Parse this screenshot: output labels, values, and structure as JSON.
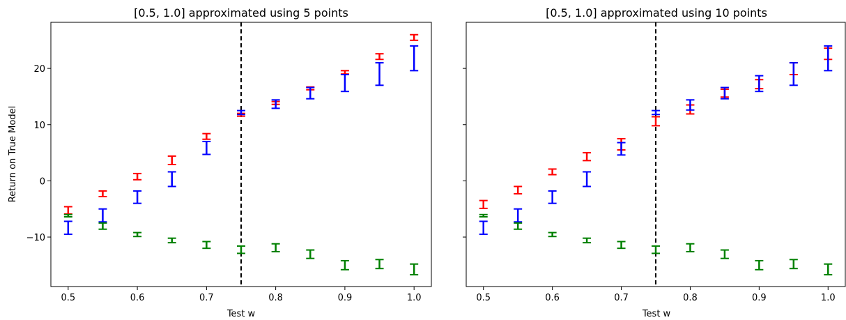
{
  "chart_data": [
    {
      "type": "scatter",
      "title": "[0.5, 1.0] approximated using 5 points",
      "xlabel": "Test w",
      "ylabel": "Return on True Model",
      "xlim": [
        0.475,
        1.025
      ],
      "ylim": [
        -18.8,
        28.2
      ],
      "xticks": [
        0.5,
        0.6,
        0.7,
        0.8,
        0.9,
        1.0
      ],
      "xtick_labels": [
        "0.5",
        "0.6",
        "0.7",
        "0.8",
        "0.9",
        "1.0"
      ],
      "yticks": [
        -10,
        0,
        10,
        20
      ],
      "ytick_labels": [
        "−10",
        "0",
        "10",
        "20"
      ],
      "show_yticklabels": true,
      "vline": 0.75,
      "grid": false,
      "series": [
        {
          "color": "#ff0000",
          "x": [
            0.5,
            0.55,
            0.6,
            0.65,
            0.7,
            0.75,
            0.8,
            0.85,
            0.9,
            0.95,
            1.0
          ],
          "low": [
            -5.9,
            -2.8,
            0.2,
            2.9,
            7.4,
            11.5,
            13.6,
            16.2,
            19.0,
            21.6,
            25.0
          ],
          "high": [
            -4.6,
            -1.8,
            1.3,
            4.4,
            8.4,
            12.0,
            14.1,
            16.7,
            19.6,
            22.6,
            26.0
          ]
        },
        {
          "color": "#0000ff",
          "x": [
            0.5,
            0.55,
            0.6,
            0.65,
            0.7,
            0.75,
            0.8,
            0.85,
            0.9,
            0.95,
            1.0
          ],
          "low": [
            -9.5,
            -7.3,
            -4.0,
            -1.0,
            4.7,
            11.8,
            12.9,
            14.6,
            15.9,
            17.0,
            19.6
          ],
          "high": [
            -7.2,
            -5.0,
            -1.8,
            1.6,
            7.0,
            12.5,
            14.4,
            16.6,
            18.9,
            21.0,
            24.0
          ]
        },
        {
          "color": "#008000",
          "x": [
            0.5,
            0.55,
            0.6,
            0.65,
            0.7,
            0.75,
            0.8,
            0.85,
            0.9,
            0.95,
            1.0
          ],
          "low": [
            -6.4,
            -8.6,
            -9.9,
            -11.0,
            -12.0,
            -12.9,
            -12.6,
            -13.8,
            -15.8,
            -15.6,
            -16.7
          ],
          "high": [
            -6.0,
            -7.5,
            -9.2,
            -10.2,
            -10.8,
            -11.6,
            -11.2,
            -12.3,
            -14.2,
            -14.0,
            -14.8
          ]
        }
      ]
    },
    {
      "type": "scatter",
      "title": "[0.5, 1.0] approximated using 10 points",
      "xlabel": "Test w",
      "ylabel": "",
      "xlim": [
        0.475,
        1.025
      ],
      "ylim": [
        -18.8,
        28.2
      ],
      "xticks": [
        0.5,
        0.6,
        0.7,
        0.8,
        0.9,
        1.0
      ],
      "xtick_labels": [
        "0.5",
        "0.6",
        "0.7",
        "0.8",
        "0.9",
        "1.0"
      ],
      "yticks": [
        -10,
        0,
        10,
        20
      ],
      "ytick_labels": [
        "",
        "",
        "",
        ""
      ],
      "show_yticklabels": false,
      "vline": 0.75,
      "grid": false,
      "series": [
        {
          "color": "#ff0000",
          "x": [
            0.5,
            0.55,
            0.6,
            0.65,
            0.7,
            0.75,
            0.8,
            0.85,
            0.9,
            0.95,
            1.0
          ],
          "low": [
            -4.9,
            -2.3,
            1.1,
            3.6,
            5.5,
            9.8,
            11.9,
            14.9,
            16.4,
            18.9,
            21.6
          ],
          "high": [
            -3.5,
            -1.0,
            2.1,
            5.0,
            7.5,
            11.4,
            13.5,
            16.3,
            18.0,
            21.0,
            23.6
          ]
        },
        {
          "color": "#0000ff",
          "x": [
            0.5,
            0.55,
            0.6,
            0.65,
            0.7,
            0.75,
            0.8,
            0.85,
            0.9,
            0.95,
            1.0
          ],
          "low": [
            -9.5,
            -7.3,
            -4.0,
            -1.0,
            4.6,
            11.8,
            12.6,
            14.6,
            15.9,
            17.0,
            19.6
          ],
          "high": [
            -7.2,
            -5.0,
            -1.8,
            1.6,
            6.8,
            12.5,
            14.4,
            16.6,
            18.7,
            21.0,
            24.0
          ]
        },
        {
          "color": "#008000",
          "x": [
            0.5,
            0.55,
            0.6,
            0.65,
            0.7,
            0.75,
            0.8,
            0.85,
            0.9,
            0.95,
            1.0
          ],
          "low": [
            -6.4,
            -8.6,
            -9.9,
            -11.0,
            -12.0,
            -12.9,
            -12.6,
            -13.8,
            -15.8,
            -15.6,
            -16.7
          ],
          "high": [
            -6.0,
            -7.5,
            -9.2,
            -10.2,
            -10.8,
            -11.6,
            -11.2,
            -12.3,
            -14.2,
            -14.0,
            -14.8
          ]
        }
      ]
    }
  ]
}
